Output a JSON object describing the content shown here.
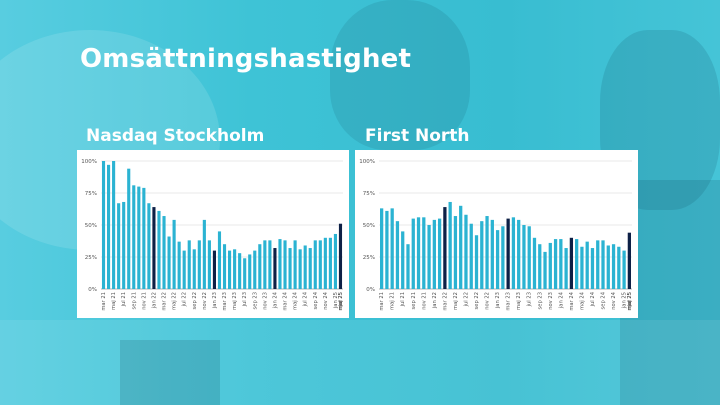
{
  "slide": {
    "title": "Omsättningshastighet"
  },
  "colors": {
    "bar": "#2bb3d2",
    "highlight": "#0d2046",
    "grid": "#e2e2e2",
    "axis_text": "#555555"
  },
  "chart_data": [
    {
      "type": "bar",
      "title": "Nasdaq Stockholm",
      "yticks": [
        "0%",
        "25%",
        "50%",
        "75%",
        "100%"
      ],
      "ylim": [
        0,
        1
      ],
      "grid": true,
      "xlabels": [
        "mar 21",
        "maj 21",
        "jul 21",
        "sep 21",
        "nov 21",
        "jan 22",
        "mar 22",
        "maj 22",
        "jul 22",
        "sep 22",
        "nov 22",
        "jan 23",
        "mar 23",
        "maj 23",
        "jul 23",
        "sep 23",
        "nov 23",
        "jan 24",
        "mar 24",
        "maj 24",
        "jul 24",
        "sep 24",
        "nov 24",
        "jan 25",
        "mar 25",
        "maj 25",
        "jul 25"
      ],
      "values": [
        1.0,
        0.97,
        1.0,
        0.67,
        0.68,
        0.94,
        0.81,
        0.8,
        0.79,
        0.67,
        0.64,
        0.61,
        0.57,
        0.41,
        0.54,
        0.37,
        0.3,
        0.38,
        0.31,
        0.38,
        0.54,
        0.38,
        0.3,
        0.45,
        0.35,
        0.3,
        0.31,
        0.28,
        0.24,
        0.27,
        0.3,
        0.35,
        0.38,
        0.38,
        0.32,
        0.39,
        0.38,
        0.32,
        0.38,
        0.31,
        0.34,
        0.32,
        0.38,
        0.38,
        0.4,
        0.4,
        0.43,
        0.51
      ],
      "highlight_index": [
        10,
        22,
        34,
        47
      ]
    },
    {
      "type": "bar",
      "title": "First North",
      "yticks": [
        "0%",
        "25%",
        "50%",
        "75%",
        "100%"
      ],
      "ylim": [
        0,
        1
      ],
      "grid": true,
      "xlabels": [
        "mar 21",
        "maj 21",
        "jul 21",
        "sep 21",
        "nov 21",
        "jan 22",
        "mar 22",
        "maj 22",
        "jul 22",
        "sep 22",
        "nov 22",
        "jan 23",
        "mar 23",
        "maj 23",
        "jul 23",
        "sep 23",
        "nov 23",
        "jan 24",
        "mar 24",
        "maj 24",
        "jul 24",
        "sep 24",
        "nov 24",
        "jan 25",
        "mar 25",
        "maj 25",
        "jul 25"
      ],
      "values": [
        0.63,
        0.61,
        0.63,
        0.53,
        0.45,
        0.35,
        0.55,
        0.56,
        0.56,
        0.5,
        0.54,
        0.55,
        0.64,
        0.68,
        0.57,
        0.65,
        0.58,
        0.51,
        0.42,
        0.53,
        0.57,
        0.54,
        0.46,
        0.49,
        0.55,
        0.56,
        0.54,
        0.5,
        0.49,
        0.4,
        0.35,
        0.29,
        0.36,
        0.39,
        0.39,
        0.32,
        0.4,
        0.39,
        0.33,
        0.37,
        0.32,
        0.38,
        0.38,
        0.34,
        0.35,
        0.33,
        0.3,
        0.44
      ],
      "highlight_index": [
        12,
        24,
        36,
        47
      ]
    }
  ]
}
